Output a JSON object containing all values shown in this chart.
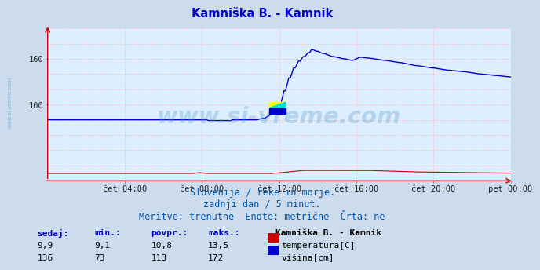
{
  "title": "Kamniška B. - Kamnik",
  "title_color": "#0000cc",
  "bg_color": "#ccdcec",
  "plot_bg_color": "#ddeeff",
  "grid_color": "#ffaaaa",
  "grid_style": ":",
  "x_tick_labels": [
    "čet 04:00",
    "čet 08:00",
    "čet 12:00",
    "čet 16:00",
    "čet 20:00",
    "pet 00:00"
  ],
  "x_tick_positions": [
    48,
    96,
    144,
    192,
    240,
    288
  ],
  "ylim": [
    0,
    200
  ],
  "y_ticks": [
    100,
    160
  ],
  "y_tick_labels": [
    "100",
    "160"
  ],
  "watermark": "www.si-vreme.com",
  "watermark_color": "#5599cc",
  "watermark_alpha": 0.3,
  "side_text": "www.si-vreme.com",
  "side_text_color": "#5599cc",
  "footer_lines": [
    "Slovenija / reke in morje.",
    "zadnji dan / 5 minut.",
    "Meritve: trenutne  Enote: metrične  Črta: ne"
  ],
  "footer_color": "#0055aa",
  "footer_fontsize": 8.5,
  "table_headers": [
    "sedaj:",
    "min.:",
    "povpr.:",
    "maks.:"
  ],
  "table_header_color": "#0000cc",
  "table_station": "Kamniška B. - Kamnik",
  "table_rows": [
    {
      "values": [
        "9,9",
        "9,1",
        "10,8",
        "13,5"
      ],
      "color_box": "#cc0000",
      "label": "temperatura[C]"
    },
    {
      "values": [
        "136",
        "73",
        "113",
        "172"
      ],
      "color_box": "#0000cc",
      "label": "višina[cm]"
    }
  ],
  "temp_color": "#cc0000",
  "height_color": "#0000cc",
  "axis_arrow_color": "#cc0000",
  "icon_yellow": "#ffff00",
  "icon_cyan": "#00dddd",
  "icon_blue": "#0000cc"
}
